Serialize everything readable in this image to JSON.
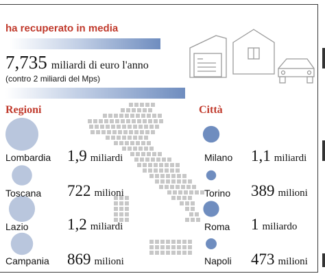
{
  "header": {
    "title": "ha recuperato in media",
    "total_value": "7,735",
    "total_unit": "miliardi di euro l'anno",
    "comparison": "(contro 2 miliardi del Mps)"
  },
  "colors": {
    "accent": "#c0392b",
    "region_bubble": "#b9c6dd",
    "city_bubble": "#6f8dbf",
    "map_grid": "#c7c7c7",
    "icons": "#9a9a9a"
  },
  "icons": [
    "documents-icon",
    "house-icon",
    "car-icon",
    "italy-map-grid"
  ],
  "chart_data": [
    {
      "type": "bubble",
      "title": "Regioni",
      "categories": [
        "Lombardia",
        "Toscana",
        "Lazio",
        "Campania"
      ],
      "values": [
        1900,
        722,
        1200,
        869
      ],
      "labels": [
        {
          "num": "1,9",
          "unit": "miliardi"
        },
        {
          "num": "722",
          "unit": "milioni"
        },
        {
          "num": "1,2",
          "unit": "miliardi"
        },
        {
          "num": "869",
          "unit": "milioni"
        }
      ]
    },
    {
      "type": "bubble",
      "title": "Città",
      "categories": [
        "Milano",
        "Torino",
        "Roma",
        "Napoli"
      ],
      "values": [
        1100,
        389,
        1000,
        473
      ],
      "labels": [
        {
          "num": "1,1",
          "unit": "miliardi"
        },
        {
          "num": "389",
          "unit": "milioni"
        },
        {
          "num": "1",
          "unit": "miliardo"
        },
        {
          "num": "473",
          "unit": "milioni"
        }
      ]
    }
  ]
}
